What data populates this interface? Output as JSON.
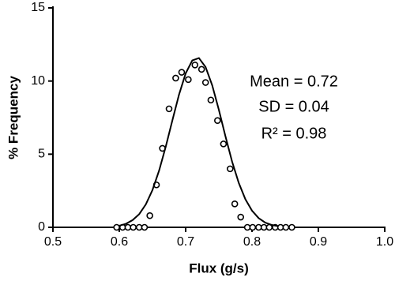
{
  "chart_data": {
    "type": "scatter",
    "x_label": "Flux (g/s)",
    "y_label": "% Frequency",
    "xlim": [
      0.5,
      1.0
    ],
    "xticks": [
      0.5,
      0.6,
      0.7,
      0.8,
      0.9,
      {
        "value": 1.0,
        "label": "1.0"
      }
    ],
    "ylim": [
      0,
      15
    ],
    "yticks": [
      0,
      5,
      10,
      15
    ],
    "annotations": [
      "Mean = 0.72",
      "SD = 0.04",
      "R² = 0.98"
    ],
    "series": [
      {
        "type": "scatter",
        "color": "#000000",
        "x": [
          0.596,
          0.605,
          0.613,
          0.621,
          0.63,
          0.638,
          0.646,
          0.656,
          0.665,
          0.675,
          0.685,
          0.694,
          0.704,
          0.714,
          0.724,
          0.73,
          0.738,
          0.748,
          0.757,
          0.767,
          0.774,
          0.783,
          0.793,
          0.801,
          0.81,
          0.818,
          0.826,
          0.835,
          0.843,
          0.851,
          0.86
        ],
        "values": [
          0,
          0,
          0,
          0,
          0,
          0,
          0.8,
          2.9,
          5.4,
          8.1,
          10.2,
          10.6,
          10.1,
          11.1,
          10.8,
          9.9,
          8.7,
          7.3,
          5.7,
          4.0,
          1.6,
          0.7,
          0,
          0,
          0,
          0,
          0,
          0,
          0,
          0,
          0
        ]
      },
      {
        "type": "line",
        "color": "#000000",
        "x": [
          0.6,
          0.61,
          0.62,
          0.63,
          0.64,
          0.65,
          0.66,
          0.67,
          0.68,
          0.69,
          0.7,
          0.71,
          0.72,
          0.73,
          0.74,
          0.75,
          0.76,
          0.77,
          0.78,
          0.79,
          0.8,
          0.81,
          0.82,
          0.83,
          0.84
        ],
        "values": [
          0.11,
          0.24,
          0.49,
          0.9,
          1.57,
          2.55,
          3.88,
          5.51,
          7.31,
          9.07,
          10.52,
          11.41,
          11.57,
          10.96,
          9.71,
          8.04,
          6.22,
          4.49,
          3.04,
          1.92,
          1.14,
          0.63,
          0.32,
          0.16,
          0.07
        ]
      }
    ]
  }
}
